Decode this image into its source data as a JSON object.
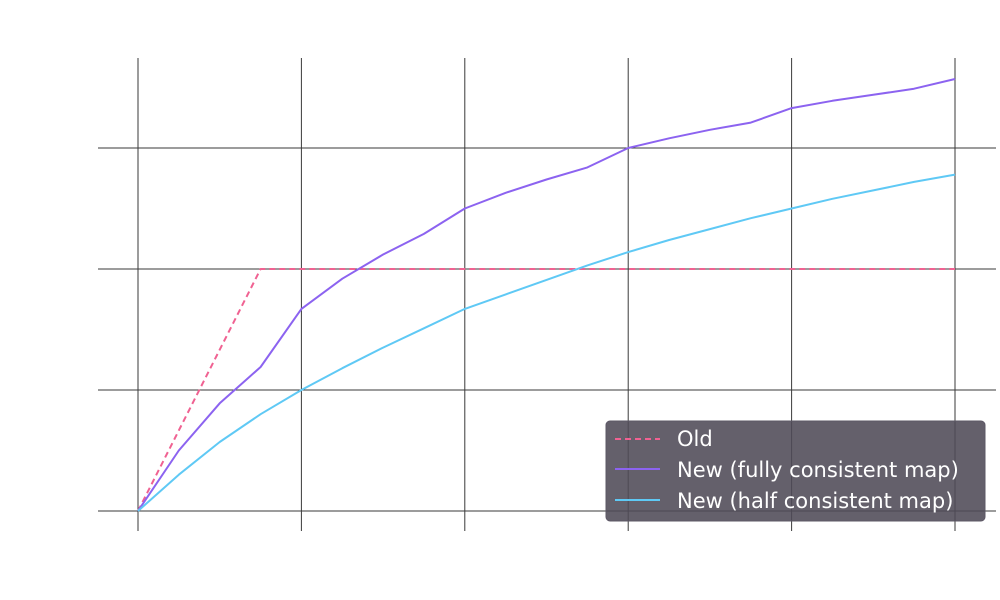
{
  "chart_data": {
    "type": "line",
    "title": "",
    "xlabel": "",
    "ylabel": "",
    "grid": true,
    "xlim": [
      0,
      5
    ],
    "ylim": [
      0,
      3
    ],
    "x_gridlines": [
      0,
      1,
      2,
      3,
      4,
      5
    ],
    "y_gridlines": [
      0,
      1,
      2,
      3
    ],
    "legend_position": "bottom-right",
    "series": [
      {
        "name": "Old",
        "color": "#f06292",
        "style": "dashed",
        "x": [
          0,
          0.75,
          5
        ],
        "y": [
          0,
          2,
          2
        ]
      },
      {
        "name": "New (fully consistent map)",
        "color": "#8c63f0",
        "style": "solid",
        "x": [
          0,
          0.25,
          0.5,
          0.75,
          1,
          1.25,
          1.5,
          1.75,
          2,
          2.25,
          2.5,
          2.75,
          3,
          3.25,
          3.5,
          3.75,
          4,
          4.25,
          4.5,
          4.75,
          5
        ],
        "y": [
          0,
          0.5,
          0.89,
          1.19,
          1.67,
          1.92,
          2.12,
          2.29,
          2.5,
          2.63,
          2.74,
          2.84,
          3.0,
          3.08,
          3.15,
          3.21,
          3.33,
          3.39,
          3.44,
          3.49,
          3.57
        ]
      },
      {
        "name": "New (half consistent map)",
        "color": "#5fc9f5",
        "style": "solid",
        "x": [
          0,
          0.25,
          0.5,
          0.75,
          1,
          1.25,
          1.5,
          1.75,
          2,
          2.25,
          2.5,
          2.75,
          3,
          3.25,
          3.5,
          3.75,
          4,
          4.25,
          4.5,
          4.75,
          5
        ],
        "y": [
          0,
          0.3,
          0.57,
          0.8,
          1.0,
          1.18,
          1.35,
          1.51,
          1.67,
          1.79,
          1.91,
          2.03,
          2.14,
          2.24,
          2.33,
          2.42,
          2.5,
          2.58,
          2.65,
          2.72,
          2.78
        ]
      }
    ]
  }
}
